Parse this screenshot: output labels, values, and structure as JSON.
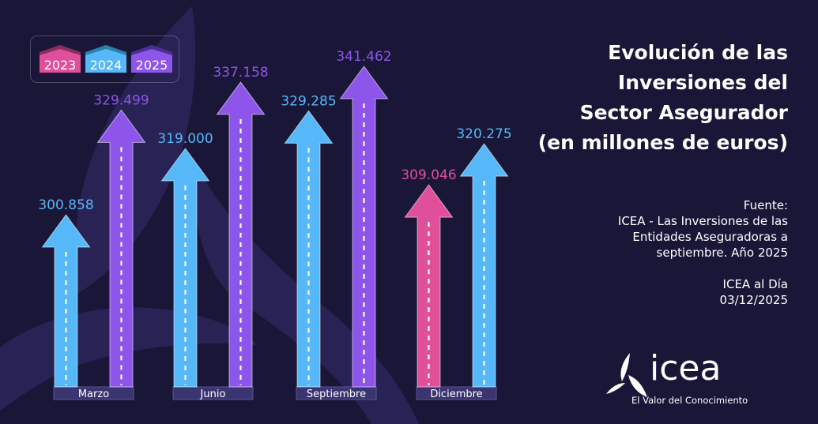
{
  "colors": {
    "background": "#1a1638",
    "shape": "#2b2659",
    "y2023": "#e0509a",
    "y2024": "#56b8f8",
    "y2025": "#8d55ea",
    "category_bar": "#3a3470"
  },
  "title": {
    "lines": [
      "Evolución de las",
      "Inversiones del",
      "Sector Asegurador",
      "(en millones de euros)"
    ]
  },
  "source": {
    "label": "Fuente:",
    "lines": [
      "ICEA - Las Inversiones de las",
      "Entidades Aseguradoras a",
      "septiembre. Año 2025"
    ],
    "publication": "ICEA al Día",
    "date": "03/12/2025"
  },
  "logo": {
    "word": "icea",
    "tagline": "El Valor del Conocimiento",
    "icon": "triskelion-leaf-icon"
  },
  "chart_data": {
    "type": "bar",
    "title": "Evolución de las Inversiones del Sector Asegurador (en millones de euros)",
    "xlabel": "",
    "ylabel": "",
    "ylim": [
      300,
      342
    ],
    "grid": false,
    "legend_position": "top-left",
    "legend": [
      {
        "name": "2023",
        "color": "#e0509a"
      },
      {
        "name": "2024",
        "color": "#56b8f8"
      },
      {
        "name": "2025",
        "color": "#8d55ea"
      }
    ],
    "categories": [
      "Marzo",
      "Junio",
      "Septiembre",
      "Diciembre"
    ],
    "points": [
      {
        "category": "Marzo",
        "series": "2024",
        "value": 300.858,
        "label": "300.858"
      },
      {
        "category": "Marzo",
        "series": "2025",
        "value": 329.499,
        "label": "329.499"
      },
      {
        "category": "Junio",
        "series": "2024",
        "value": 319.0,
        "label": "319.000"
      },
      {
        "category": "Junio",
        "series": "2025",
        "value": 337.158,
        "label": "337.158"
      },
      {
        "category": "Septiembre",
        "series": "2024",
        "value": 329.285,
        "label": "329.285"
      },
      {
        "category": "Septiembre",
        "series": "2025",
        "value": 341.462,
        "label": "341.462"
      },
      {
        "category": "Diciembre",
        "series": "2023",
        "value": 309.046,
        "label": "309.046"
      },
      {
        "category": "Diciembre",
        "series": "2024",
        "value": 320.275,
        "label": "320.275"
      }
    ]
  }
}
